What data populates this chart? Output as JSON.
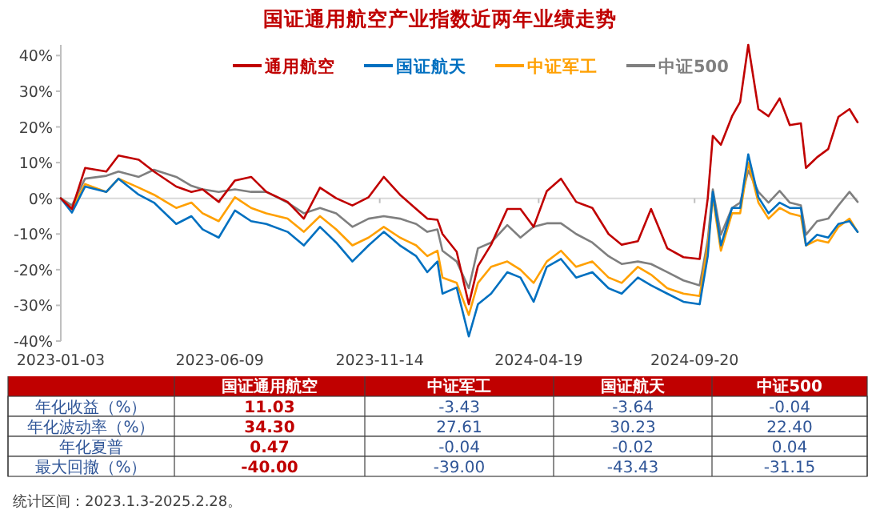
{
  "chart_data": [
    {
      "type": "line",
      "title": "国证通用航空产业指数近两年业绩走势",
      "legend": "top",
      "x": [
        "2023-01-03",
        "2023-01-14",
        "2023-01-27",
        "2023-02-17",
        "2023-03-01",
        "2023-03-21",
        "2023-04-05",
        "2023-04-27",
        "2023-05-12",
        "2023-05-23",
        "2023-06-08",
        "2023-06-24",
        "2023-07-10",
        "2023-07-25",
        "2023-08-15",
        "2023-08-31",
        "2023-09-16",
        "2023-10-02",
        "2023-10-18",
        "2023-11-03",
        "2023-11-18",
        "2023-12-04",
        "2023-12-20",
        "2023-12-31",
        "2024-01-10",
        "2024-01-15",
        "2024-01-29",
        "2024-02-10",
        "2024-02-19",
        "2024-03-03",
        "2024-03-19",
        "2024-04-01",
        "2024-04-14",
        "2024-04-27",
        "2024-05-11",
        "2024-05-26",
        "2024-06-11",
        "2024-06-27",
        "2024-07-10",
        "2024-07-26",
        "2024-08-08",
        "2024-08-24",
        "2024-09-09",
        "2024-09-25",
        "2024-10-03",
        "2024-10-08",
        "2024-10-16",
        "2024-10-27",
        "2024-11-04",
        "2024-11-12",
        "2024-11-22",
        "2024-12-02",
        "2024-12-13",
        "2024-12-23",
        "2025-01-03",
        "2025-01-08",
        "2025-01-19",
        "2025-01-30",
        "2025-02-09",
        "2025-02-20",
        "2025-02-28"
      ],
      "xlim": [
        "2023-01-03",
        "2025-02-28"
      ],
      "xticks": [
        {
          "value": "2023-01-03",
          "label": "2023-01-03"
        },
        {
          "value": "2023-06-09",
          "label": "2023-06-09"
        },
        {
          "value": "2023-11-14",
          "label": "2023-11-14"
        },
        {
          "value": "2024-04-19",
          "label": "2024-04-19"
        },
        {
          "value": "2024-09-20",
          "label": "2024-09-20"
        }
      ],
      "ylim": [
        -40,
        43
      ],
      "yticks": [
        {
          "value": -40,
          "label": "-40%"
        },
        {
          "value": -30,
          "label": "-30%"
        },
        {
          "value": -20,
          "label": "-20%"
        },
        {
          "value": -10,
          "label": "-10%"
        },
        {
          "value": 0,
          "label": "0%"
        },
        {
          "value": 10,
          "label": "10%"
        },
        {
          "value": 20,
          "label": "20%"
        },
        {
          "value": 30,
          "label": "30%"
        },
        {
          "value": 40,
          "label": "40%"
        }
      ],
      "ref_lines": [
        {
          "axis": "y",
          "value": 0,
          "color": "#d9d9d9"
        }
      ],
      "series": [
        {
          "name": "通用航空",
          "color": "#c00000",
          "values": [
            0,
            -3,
            8.5,
            7.5,
            12,
            10.8,
            7.5,
            3.3,
            1.8,
            2.5,
            -1,
            5,
            6,
            1.8,
            -1,
            -5.7,
            3,
            0,
            -2,
            0.3,
            6,
            1,
            -3,
            -5.7,
            -6,
            -10,
            -15,
            -29.7,
            -19,
            -13,
            -3,
            -3,
            -8,
            2,
            5.5,
            -1,
            -2.7,
            -10,
            -13,
            -12,
            -3,
            -14,
            -16.5,
            -17,
            0,
            17.5,
            15,
            23,
            27,
            43,
            25,
            23,
            28,
            20.5,
            21,
            8.5,
            11.5,
            13.8,
            22.8,
            25,
            21.3
          ]
        },
        {
          "name": "国证航天",
          "color": "#0070c0",
          "values": [
            0,
            -4,
            3.3,
            1.8,
            5.5,
            1,
            -1.2,
            -7.2,
            -5,
            -8.7,
            -11,
            -3.4,
            -6.4,
            -7.2,
            -9.4,
            -13.2,
            -8,
            -12.4,
            -17.7,
            -13.2,
            -9.4,
            -13.2,
            -16.2,
            -20.7,
            -17.7,
            -26.7,
            -25,
            -38.7,
            -29.7,
            -26.7,
            -20.7,
            -22.2,
            -29,
            -19.2,
            -17,
            -22.2,
            -20.7,
            -25.2,
            -26.7,
            -22.2,
            -24.4,
            -26.7,
            -29,
            -29.7,
            -16.2,
            1.8,
            -13.2,
            -2.7,
            -2.7,
            12.3,
            0.3,
            -4.2,
            -1.2,
            -2.7,
            -2.7,
            -13.2,
            -10.2,
            -11,
            -7.2,
            -6.4,
            -9.4
          ]
        },
        {
          "name": "中证军工",
          "color": "#ffa000",
          "values": [
            0,
            -3,
            4,
            1.8,
            5.5,
            3,
            1,
            -2.7,
            -1.2,
            -4.2,
            -6.4,
            0.3,
            -2.7,
            -4.2,
            -5.7,
            -9.4,
            -5,
            -8.7,
            -13.2,
            -11,
            -8,
            -11,
            -13.2,
            -16.2,
            -14.7,
            -22.2,
            -23.7,
            -32.7,
            -23.7,
            -19.2,
            -17.7,
            -20,
            -23.7,
            -17.7,
            -14.7,
            -19.2,
            -17.7,
            -22.2,
            -23.7,
            -19.2,
            -21.4,
            -25.2,
            -26.7,
            -27.4,
            -13.2,
            0.3,
            -14.7,
            -4.2,
            -4.2,
            10,
            -1.2,
            -5.7,
            -2.7,
            -4.2,
            -5,
            -13.2,
            -11.7,
            -12.4,
            -8,
            -5.7,
            -9.4
          ]
        },
        {
          "name": "中证500",
          "color": "#7f7f7f",
          "values": [
            0,
            -2,
            5.5,
            6.3,
            7.5,
            6,
            8,
            6,
            3.5,
            2.5,
            1.8,
            2.5,
            1.8,
            1.8,
            -1.2,
            -4.2,
            -2.7,
            -4.2,
            -8,
            -5.7,
            -5,
            -5.7,
            -7.2,
            -9.4,
            -8.7,
            -14.7,
            -17.7,
            -25.2,
            -14,
            -12.4,
            -7.5,
            -11,
            -8,
            -7,
            -7,
            -10,
            -12.4,
            -16.2,
            -18.4,
            -17.7,
            -18.4,
            -20.7,
            -23,
            -24.4,
            -11.7,
            2.5,
            -10.2,
            -2.7,
            -1.2,
            7.8,
            1.8,
            -1.2,
            2.1,
            -1.2,
            -2,
            -10.2,
            -6.4,
            -5.7,
            -2,
            1.8,
            -1
          ]
        }
      ]
    },
    {
      "type": "other",
      "categories": [
        "国证通用航空",
        "中证军工",
        "国证航天",
        "中证500"
      ],
      "y_categories": [
        "年化收益（%）",
        "年化波动率（%）",
        "年化夏普",
        "最大回撤（%）"
      ],
      "cell_labels": [
        [
          "11.03",
          "-3.43",
          "-3.64",
          "-0.04"
        ],
        [
          "34.30",
          "27.61",
          "30.23",
          "22.40"
        ],
        [
          "0.47",
          "-0.04",
          "-0.02",
          "0.04"
        ],
        [
          "-40.00",
          "-39.00",
          "-43.43",
          "-31.15"
        ]
      ],
      "annotations": [
        "统计区间：2023.1.3-2025.2.28。"
      ]
    }
  ]
}
